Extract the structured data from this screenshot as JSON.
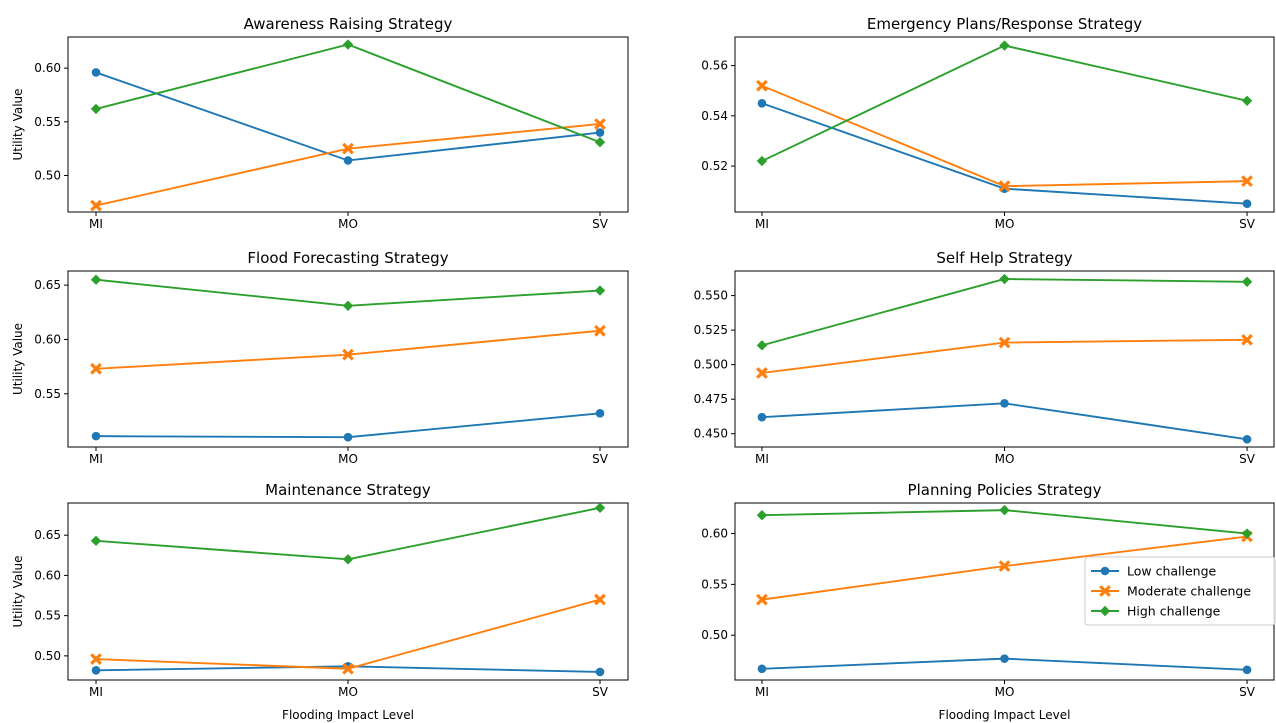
{
  "figure": {
    "shared_xlabel": "Flooding Impact Level",
    "legend": {
      "placement": "right, inside Planning Policies Strategy panel",
      "entries": [
        {
          "label": "Low challenge",
          "color": "#1f77b4",
          "marker": "circle"
        },
        {
          "label": "Moderate challenge",
          "color": "#ff7f0e",
          "marker": "x"
        },
        {
          "label": "High challenge",
          "color": "#2ca02c",
          "marker": "diamond"
        }
      ]
    }
  },
  "chart_data": [
    {
      "type": "line",
      "title": "Awareness Raising Strategy",
      "xlabel": "",
      "ylabel": "Utility Value",
      "categories": [
        "MI",
        "MO",
        "SV"
      ],
      "yticks": [
        0.5,
        0.55,
        0.6
      ],
      "ytick_labels": [
        "0.50",
        "0.55",
        "0.60"
      ],
      "ylim": [
        0.466,
        0.629
      ],
      "grid": false,
      "series": [
        {
          "name": "Low challenge",
          "values": [
            0.596,
            0.514,
            0.54
          ]
        },
        {
          "name": "Moderate challenge",
          "values": [
            0.472,
            0.525,
            0.548
          ]
        },
        {
          "name": "High challenge",
          "values": [
            0.562,
            0.622,
            0.531
          ]
        }
      ]
    },
    {
      "type": "line",
      "title": "Emergency Plans/Response Strategy",
      "xlabel": "",
      "ylabel": "",
      "categories": [
        "MI",
        "MO",
        "SV"
      ],
      "yticks": [
        0.52,
        0.54,
        0.56
      ],
      "ytick_labels": [
        "0.52",
        "0.54",
        "0.56"
      ],
      "ylim": [
        0.5017,
        0.5714
      ],
      "grid": false,
      "series": [
        {
          "name": "Low challenge",
          "values": [
            0.545,
            0.511,
            0.505
          ]
        },
        {
          "name": "Moderate challenge",
          "values": [
            0.552,
            0.512,
            0.514
          ]
        },
        {
          "name": "High challenge",
          "values": [
            0.522,
            0.568,
            0.546
          ]
        }
      ]
    },
    {
      "type": "line",
      "title": "Flood Forecasting Strategy",
      "xlabel": "",
      "ylabel": "Utility Value",
      "categories": [
        "MI",
        "MO",
        "SV"
      ],
      "yticks": [
        0.55,
        0.6,
        0.65
      ],
      "ytick_labels": [
        "0.55",
        "0.60",
        "0.65"
      ],
      "ylim": [
        0.501,
        0.663
      ],
      "grid": false,
      "series": [
        {
          "name": "Low challenge",
          "values": [
            0.511,
            0.51,
            0.532
          ]
        },
        {
          "name": "Moderate challenge",
          "values": [
            0.573,
            0.586,
            0.608
          ]
        },
        {
          "name": "High challenge",
          "values": [
            0.655,
            0.631,
            0.645
          ]
        }
      ]
    },
    {
      "type": "line",
      "title": "Self Help Strategy",
      "xlabel": "",
      "ylabel": "",
      "categories": [
        "MI",
        "MO",
        "SV"
      ],
      "yticks": [
        0.45,
        0.475,
        0.5,
        0.525,
        0.55
      ],
      "ytick_labels": [
        "0.450",
        "0.475",
        "0.500",
        "0.525",
        "0.550"
      ],
      "ylim": [
        0.4404,
        0.5678
      ],
      "grid": false,
      "series": [
        {
          "name": "Low challenge",
          "values": [
            0.462,
            0.472,
            0.446
          ]
        },
        {
          "name": "Moderate challenge",
          "values": [
            0.494,
            0.516,
            0.518
          ]
        },
        {
          "name": "High challenge",
          "values": [
            0.514,
            0.562,
            0.56
          ]
        }
      ]
    },
    {
      "type": "line",
      "title": "Maintenance Strategy",
      "xlabel": "Flooding Impact Level",
      "ylabel": "Utility Value",
      "categories": [
        "MI",
        "MO",
        "SV"
      ],
      "yticks": [
        0.5,
        0.55,
        0.6,
        0.65
      ],
      "ytick_labels": [
        "0.50",
        "0.55",
        "0.60",
        "0.65"
      ],
      "ylim": [
        0.47,
        0.69
      ],
      "grid": false,
      "series": [
        {
          "name": "Low challenge",
          "values": [
            0.482,
            0.487,
            0.48
          ]
        },
        {
          "name": "Moderate challenge",
          "values": [
            0.496,
            0.484,
            0.57
          ]
        },
        {
          "name": "High challenge",
          "values": [
            0.643,
            0.62,
            0.684
          ]
        }
      ]
    },
    {
      "type": "line",
      "title": "Planning Policies Strategy",
      "xlabel": "Flooding Impact Level",
      "ylabel": "",
      "categories": [
        "MI",
        "MO",
        "SV"
      ],
      "yticks": [
        0.5,
        0.55,
        0.6
      ],
      "ytick_labels": [
        "0.50",
        "0.55",
        "0.60"
      ],
      "ylim": [
        0.456,
        0.63
      ],
      "grid": false,
      "series": [
        {
          "name": "Low challenge",
          "values": [
            0.467,
            0.477,
            0.466
          ]
        },
        {
          "name": "Moderate challenge",
          "values": [
            0.535,
            0.568,
            0.597
          ]
        },
        {
          "name": "High challenge",
          "values": [
            0.618,
            0.623,
            0.6
          ]
        }
      ]
    }
  ]
}
